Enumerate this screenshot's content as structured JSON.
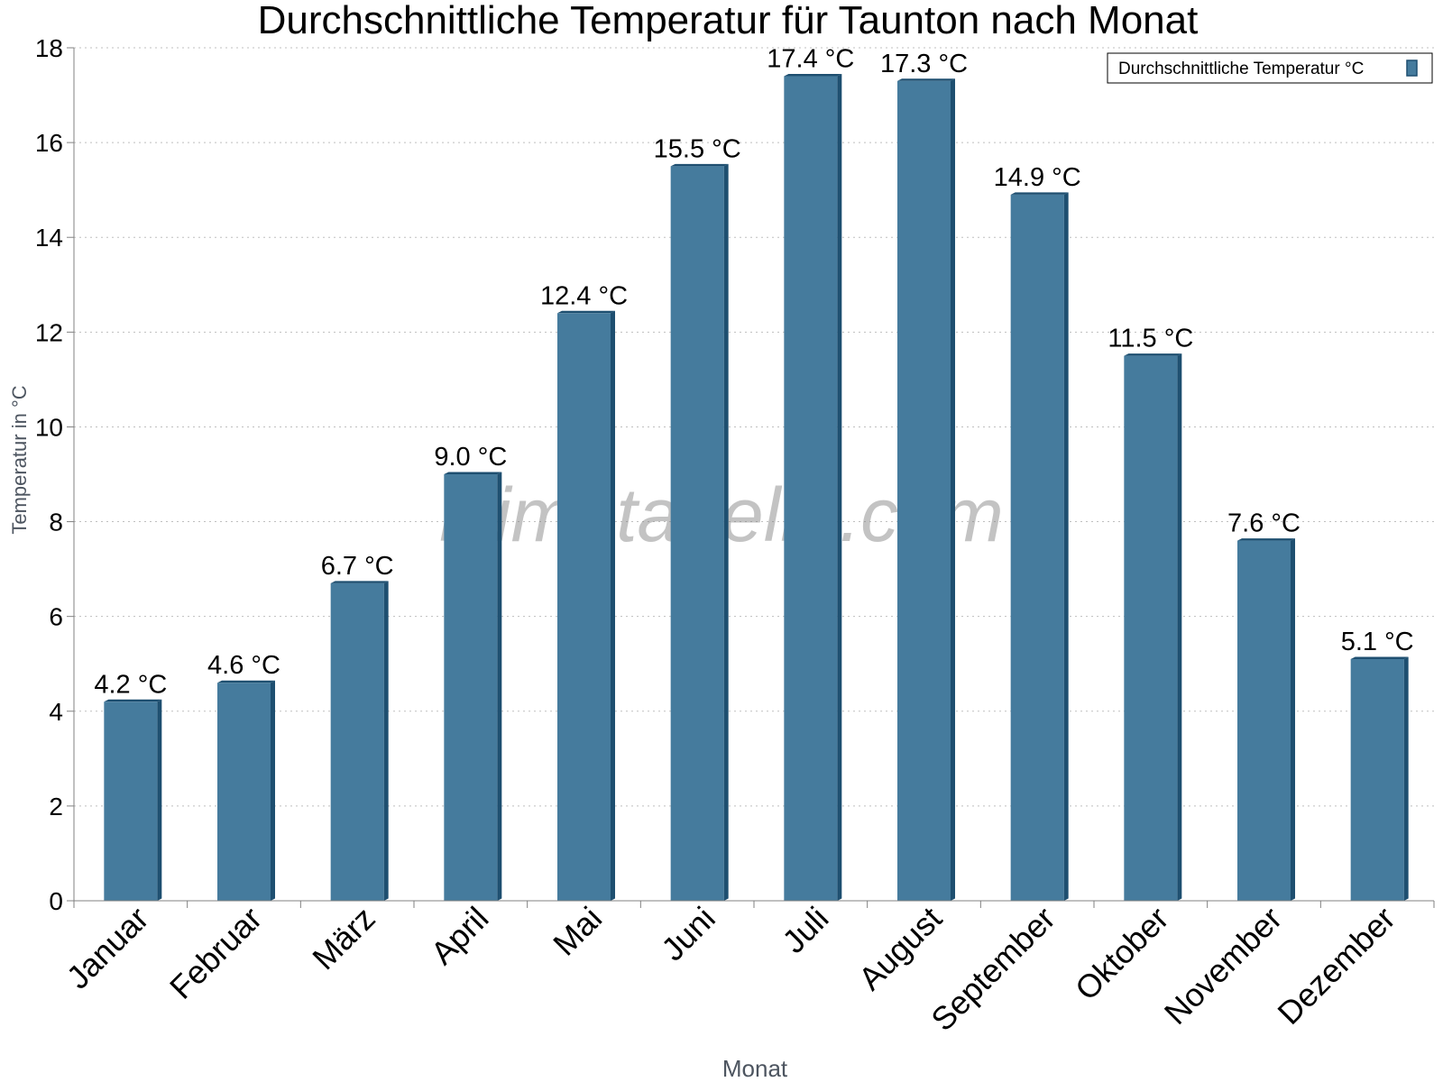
{
  "watermark": "klimatabelle.com",
  "colors": {
    "bar": "#457b9d",
    "bar_side": "#1e4f70",
    "grid": "#bfbfbf",
    "axis": "#808080",
    "text": "#000000",
    "axis_title": "#4d5560"
  },
  "chart_data": {
    "type": "bar",
    "title": "Durchschnittliche Temperatur für Taunton nach Monat",
    "xlabel": "Monat",
    "ylabel": "Temperatur in °C",
    "ylim": [
      0,
      18
    ],
    "yticks": [
      0,
      2,
      4,
      6,
      8,
      10,
      12,
      14,
      16,
      18
    ],
    "grid": true,
    "legend_position": "top-right",
    "categories": [
      "Januar",
      "Februar",
      "März",
      "April",
      "Mai",
      "Juni",
      "Juli",
      "August",
      "September",
      "Oktober",
      "November",
      "Dezember"
    ],
    "series": [
      {
        "name": "Durchschnittliche Temperatur °C",
        "values": [
          4.2,
          4.6,
          6.7,
          9.0,
          12.4,
          15.5,
          17.4,
          17.3,
          14.9,
          11.5,
          7.6,
          5.1
        ],
        "labels": [
          "4.2 °C",
          "4.6 °C",
          "6.7 °C",
          "9.0 °C",
          "12.4 °C",
          "15.5 °C",
          "17.4 °C",
          "17.3 °C",
          "14.9 °C",
          "11.5 °C",
          "7.6 °C",
          "5.1 °C"
        ]
      }
    ]
  }
}
